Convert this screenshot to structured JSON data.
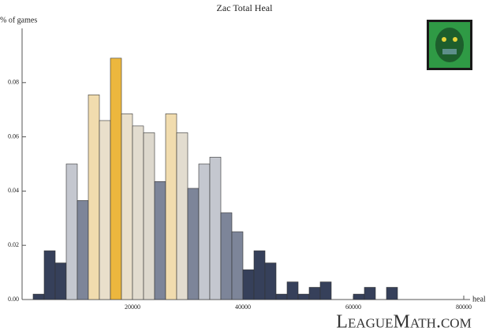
{
  "chart_data": {
    "type": "histogram",
    "title": "Zac Total Heal",
    "y_label": "% of games",
    "x_label": "heal",
    "bins": [
      2000,
      4000,
      6000,
      8000,
      10000,
      12000,
      14000,
      16000,
      18000,
      20000,
      22000,
      24000,
      26000,
      28000,
      30000,
      32000,
      34000,
      36000,
      38000,
      40000,
      42000,
      44000,
      46000,
      48000,
      50000,
      52000,
      54000,
      56000,
      58000,
      60000,
      62000,
      64000,
      66000,
      68000
    ],
    "values": [
      0.002,
      0.018,
      0.0135,
      0.05,
      0.0365,
      0.0755,
      0.066,
      0.089,
      0.0685,
      0.064,
      0.0615,
      0.0435,
      0.0685,
      0.0615,
      0.041,
      0.05,
      0.0525,
      0.032,
      0.025,
      0.011,
      0.018,
      0.0135,
      0.002,
      0.0065,
      0.002,
      0.0045,
      0.0065,
      0,
      0,
      0.002,
      0.0045,
      0,
      0.0045
    ],
    "colors": [
      "#36405a",
      "#36405a",
      "#36405a",
      "#c4c7cf",
      "#7d8599",
      "#f1dcae",
      "#e9dfcb",
      "#ecb73e",
      "#e9dfcb",
      "#e2dccf",
      "#ddd8cd",
      "#7d8599",
      "#f1dcae",
      "#e2dccf",
      "#7d8599",
      "#c4c7cf",
      "#c4c7cf",
      "#7d8599",
      "#7d8599",
      "#36405a",
      "#36405a",
      "#36405a",
      "#36405a",
      "#36405a",
      "#36405a",
      "#36405a",
      "#36405a",
      "#36405a",
      "#36405a",
      "#36405a",
      "#36405a",
      "#36405a",
      "#36405a"
    ],
    "xlim": [
      0,
      80000
    ],
    "ylim": [
      0,
      0.1
    ],
    "xticks": [
      20000,
      40000,
      60000,
      80000
    ],
    "yticks": [
      {
        "value": 0,
        "label": "0.00"
      },
      {
        "value": 0.02,
        "label": "0.02"
      },
      {
        "value": 0.04,
        "label": "0.04"
      },
      {
        "value": 0.06,
        "label": "0.06"
      },
      {
        "value": 0.08,
        "label": "0.08"
      }
    ],
    "watermark": "LeagueMath.com"
  }
}
